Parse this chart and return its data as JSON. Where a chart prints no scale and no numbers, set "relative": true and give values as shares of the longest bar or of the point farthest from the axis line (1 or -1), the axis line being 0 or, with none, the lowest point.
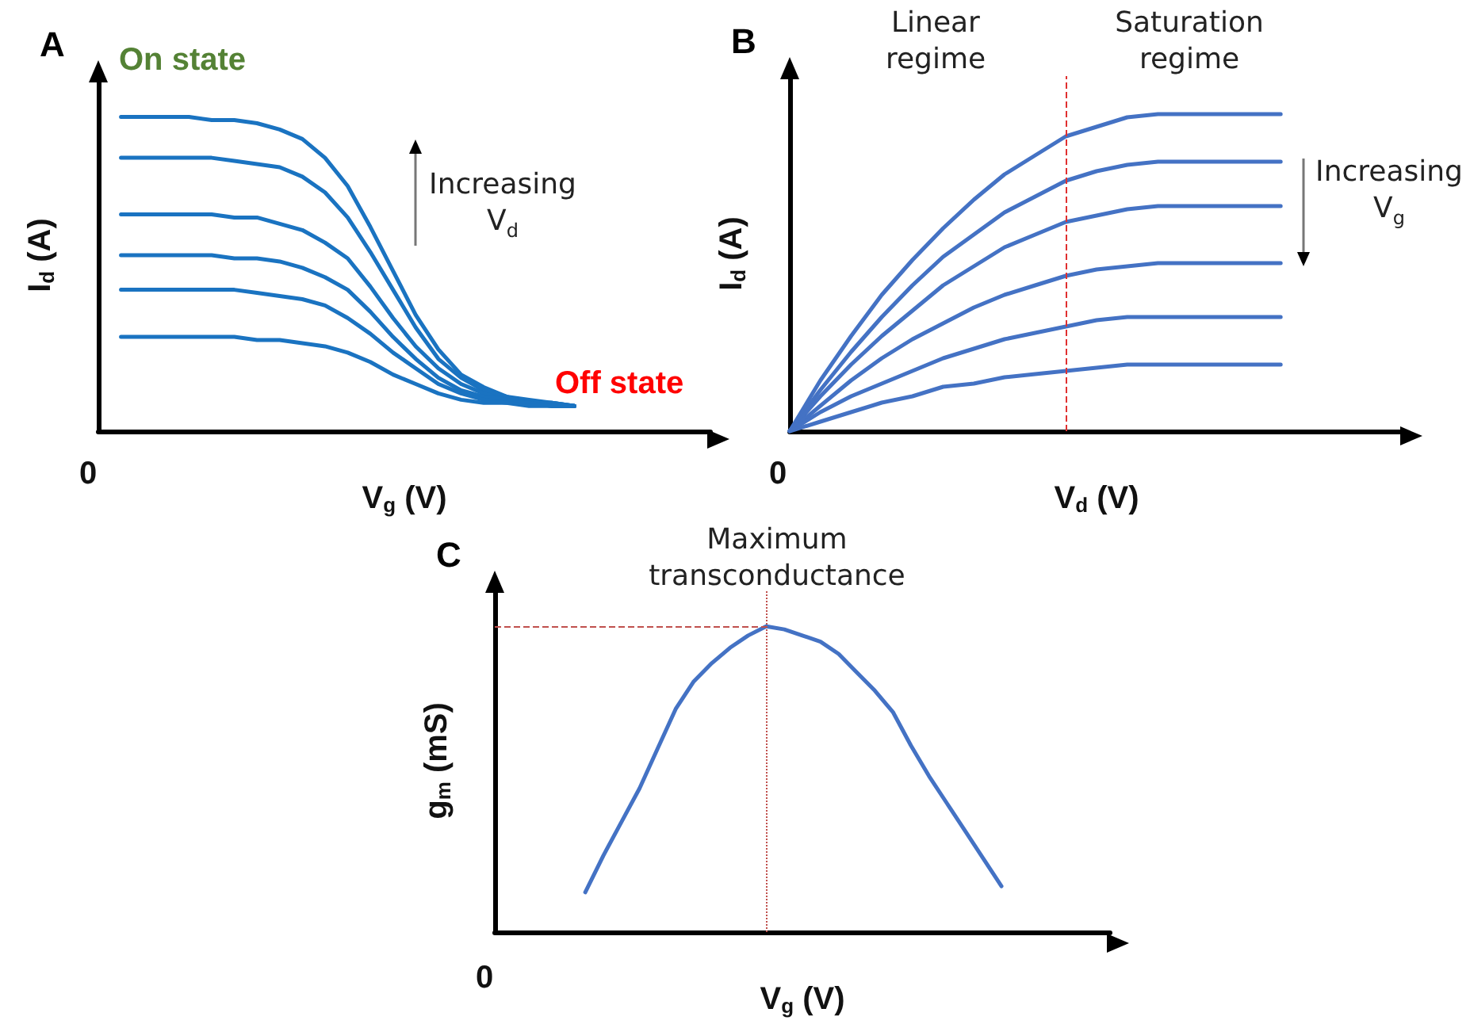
{
  "chart_data": [
    {
      "type": "line",
      "title": "A",
      "xlabel": "V$_{g}$ (V)",
      "ylabel": "I$_{d}$ (A)",
      "relative": true,
      "marker": "none",
      "line_style": "solid",
      "annotations": [
        "On state",
        "Increasing V$_{d}$",
        "Off state",
        "0"
      ],
      "categories": [
        null,
        null,
        null,
        null,
        null,
        null,
        null,
        null,
        null,
        null,
        null,
        null,
        null,
        null,
        null,
        null,
        null,
        null,
        null,
        null,
        null,
        null,
        null,
        null,
        null,
        null,
        null,
        null
      ],
      "series": [
        {
          "color": "#1a73c1",
          "values": [
            null,
            1.0,
            1.0,
            1.0,
            1.0,
            0.99,
            0.99,
            0.98,
            0.96,
            0.93,
            0.87,
            0.78,
            0.65,
            0.51,
            0.37,
            0.26,
            0.18,
            0.14,
            0.11,
            0.1,
            0.09,
            0.08,
            null,
            null,
            null,
            null,
            null,
            null
          ]
        },
        {
          "color": "#1a73c1",
          "values": [
            null,
            0.87,
            0.87,
            0.87,
            0.87,
            0.87,
            0.86,
            0.85,
            0.84,
            0.81,
            0.76,
            0.68,
            0.57,
            0.45,
            0.33,
            0.23,
            0.17,
            0.13,
            0.11,
            0.09,
            0.09,
            0.08,
            null,
            null,
            null,
            null,
            null,
            null
          ]
        },
        {
          "color": "#1a73c1",
          "values": [
            null,
            0.69,
            0.69,
            0.69,
            0.69,
            0.69,
            0.68,
            0.68,
            0.66,
            0.64,
            0.6,
            0.55,
            0.46,
            0.36,
            0.27,
            0.2,
            0.15,
            0.12,
            0.1,
            0.09,
            0.09,
            0.08,
            null,
            null,
            null,
            null,
            null,
            null
          ]
        },
        {
          "color": "#1a73c1",
          "values": [
            null,
            0.56,
            0.56,
            0.56,
            0.56,
            0.56,
            0.55,
            0.55,
            0.54,
            0.52,
            0.49,
            0.45,
            0.38,
            0.3,
            0.23,
            0.17,
            0.13,
            0.11,
            0.1,
            0.09,
            0.08,
            0.08,
            null,
            null,
            null,
            null,
            null,
            null
          ]
        },
        {
          "color": "#1a73c1",
          "values": [
            null,
            0.45,
            0.45,
            0.45,
            0.45,
            0.45,
            0.45,
            0.44,
            0.43,
            0.42,
            0.4,
            0.36,
            0.31,
            0.25,
            0.2,
            0.15,
            0.12,
            0.1,
            0.09,
            0.09,
            0.08,
            0.08,
            null,
            null,
            null,
            null,
            null,
            null
          ]
        },
        {
          "color": "#1a73c1",
          "values": [
            null,
            0.3,
            0.3,
            0.3,
            0.3,
            0.3,
            0.3,
            0.29,
            0.29,
            0.28,
            0.27,
            0.25,
            0.22,
            0.18,
            0.15,
            0.12,
            0.1,
            0.09,
            0.09,
            0.08,
            0.08,
            0.08,
            null,
            null,
            null,
            null,
            null,
            null
          ]
        }
      ]
    },
    {
      "type": "line",
      "title": "B",
      "xlabel": "V$_{d}$ (V)",
      "ylabel": "I$_{d}$ (A)",
      "relative": true,
      "marker": "none",
      "line_style": "solid",
      "annotations": [
        "Linear regime",
        "Saturation regime",
        "Increasing V$_{g}$",
        "0"
      ],
      "ref_lines": [
        {
          "axis": "x",
          "color": "#e03030",
          "line_style": "dashed"
        }
      ],
      "categories": [
        null,
        null,
        null,
        null,
        null,
        null,
        null,
        null,
        null,
        null,
        null,
        null,
        null,
        null,
        null,
        null,
        null,
        null,
        null,
        null,
        null
      ],
      "series": [
        {
          "color": "#4472c4",
          "values": [
            0,
            0.16,
            0.3,
            0.43,
            0.54,
            0.64,
            0.73,
            0.81,
            0.87,
            0.93,
            0.96,
            0.99,
            1,
            1,
            1,
            1,
            1,
            null,
            null,
            null,
            null
          ]
        },
        {
          "color": "#4472c4",
          "values": [
            0,
            0.13,
            0.25,
            0.36,
            0.46,
            0.55,
            0.62,
            0.69,
            0.74,
            0.79,
            0.82,
            0.84,
            0.85,
            0.85,
            0.85,
            0.85,
            0.85,
            null,
            null,
            null,
            null
          ]
        },
        {
          "color": "#4472c4",
          "values": [
            0,
            0.11,
            0.21,
            0.3,
            0.38,
            0.46,
            0.52,
            0.58,
            0.62,
            0.66,
            0.68,
            0.7,
            0.71,
            0.71,
            0.71,
            0.71,
            0.71,
            null,
            null,
            null,
            null
          ]
        },
        {
          "color": "#4472c4",
          "values": [
            0,
            0.08,
            0.16,
            0.23,
            0.29,
            0.34,
            0.39,
            0.43,
            0.46,
            0.49,
            0.51,
            0.52,
            0.53,
            0.53,
            0.53,
            0.53,
            0.53,
            null,
            null,
            null,
            null
          ]
        },
        {
          "color": "#4472c4",
          "values": [
            0,
            0.06,
            0.11,
            0.15,
            0.19,
            0.23,
            0.26,
            0.29,
            0.31,
            0.33,
            0.35,
            0.36,
            0.36,
            0.36,
            0.36,
            0.36,
            0.36,
            null,
            null,
            null,
            null
          ]
        },
        {
          "color": "#4472c4",
          "values": [
            0,
            0.03,
            0.06,
            0.09,
            0.11,
            0.14,
            0.15,
            0.17,
            0.18,
            0.19,
            0.2,
            0.21,
            0.21,
            0.21,
            0.21,
            0.21,
            0.21,
            null,
            null,
            null,
            null
          ]
        }
      ]
    },
    {
      "type": "line",
      "title": "C",
      "xlabel": "V$_{g}$ (V)",
      "ylabel": "g$_{m}$ (mS)",
      "relative": true,
      "marker": "none",
      "line_style": "solid",
      "annotations": [
        "Maximum transconductance",
        "0"
      ],
      "ref_lines": [
        {
          "axis": "x",
          "color": "#c0504d",
          "line_style": "dotted"
        },
        {
          "axis": "y",
          "color": "#c0504d",
          "line_style": "dashed"
        }
      ],
      "categories": [
        null,
        null,
        null,
        null,
        null,
        null,
        null,
        null,
        null,
        null,
        null,
        null,
        null,
        null,
        null,
        null,
        null,
        null,
        null,
        null,
        null,
        null,
        null,
        null,
        null,
        null,
        null,
        null,
        null,
        null,
        null,
        null,
        null,
        null,
        null
      ],
      "series": [
        {
          "color": "#4472c4",
          "values": [
            null,
            null,
            null,
            null,
            null,
            0.13,
            0.25,
            0.36,
            0.47,
            0.6,
            0.73,
            0.82,
            0.88,
            0.93,
            0.97,
            1,
            0.99,
            0.97,
            0.95,
            0.91,
            0.85,
            0.79,
            0.72,
            0.61,
            0.51,
            0.42,
            0.33,
            0.24,
            0.15,
            null,
            null,
            null,
            null,
            null,
            null
          ]
        }
      ]
    }
  ]
}
